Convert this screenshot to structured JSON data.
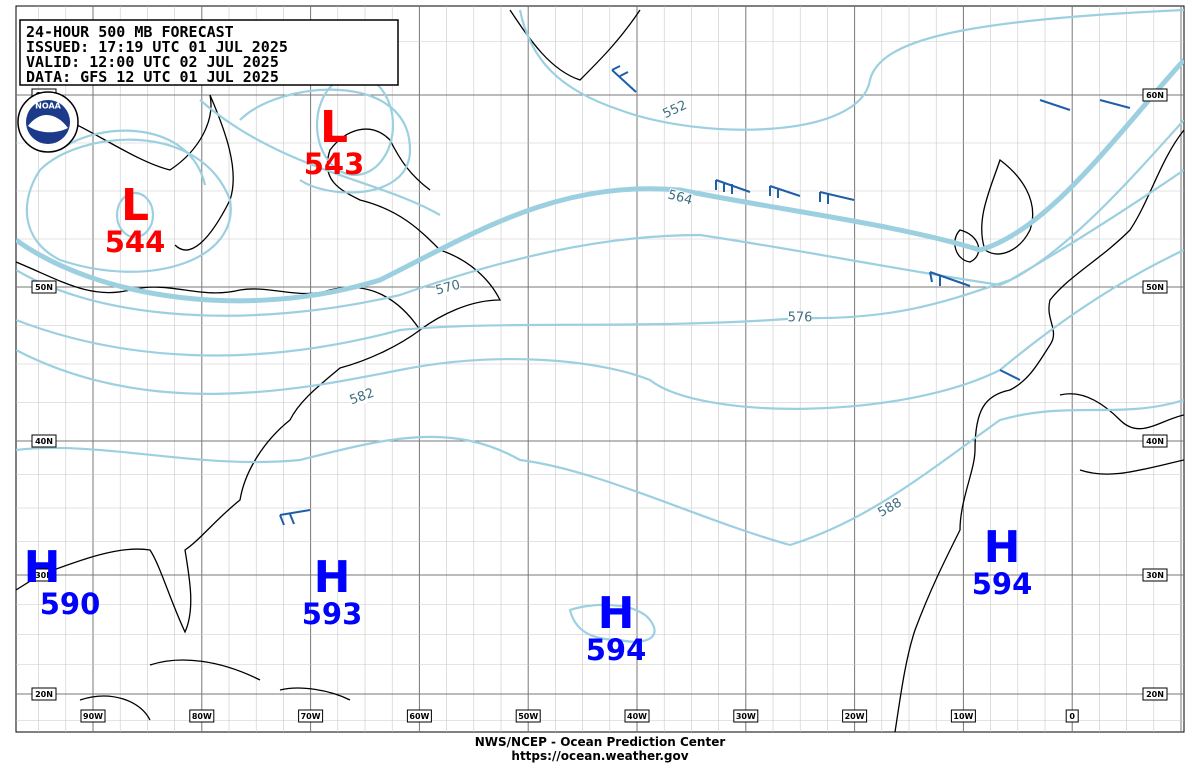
{
  "title_block": {
    "lines": [
      "24-HOUR 500 MB FORECAST",
      "ISSUED: 17:19 UTC 01 JUL 2025",
      "VALID:  12:00 UTC 02 JUL 2025",
      "DATA:   GFS 12 UTC 01 JUL 2025"
    ]
  },
  "logo": "NOAA",
  "centers": [
    {
      "label": "L",
      "value": 543,
      "color": "#ff0000"
    },
    {
      "label": "L",
      "value": 544,
      "color": "#ff0000"
    },
    {
      "label": "H",
      "value": 590,
      "color": "#0000ff"
    },
    {
      "label": "H",
      "value": 593,
      "color": "#0000ff"
    },
    {
      "label": "H",
      "value": 594,
      "color": "#0000ff"
    },
    {
      "label": "H",
      "value": 594,
      "color": "#0000ff"
    }
  ],
  "contour_labels": [
    552,
    564,
    570,
    576,
    582,
    588
  ],
  "longitudes": [
    "90W",
    "80W",
    "70W",
    "60W",
    "50W",
    "40W",
    "30W",
    "20W",
    "10W",
    "0"
  ],
  "latitudes": [
    "60N",
    "50N",
    "40N",
    "30N",
    "20N"
  ],
  "footer": [
    "NWS/NCEP - Ocean Prediction Center",
    "https://ocean.weather.gov"
  ]
}
